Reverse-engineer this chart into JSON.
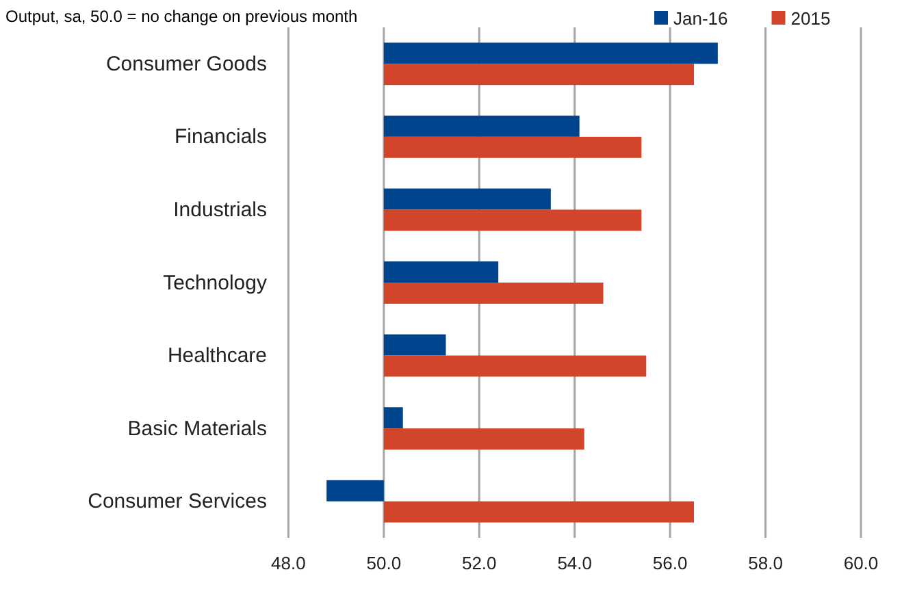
{
  "chart_data": {
    "type": "bar",
    "orientation": "horizontal",
    "title": "Output, sa, 50.0 = no change on previous month",
    "categories": [
      "Consumer Goods",
      "Financials",
      "Industrials",
      "Technology",
      "Healthcare",
      "Basic Materials",
      "Consumer Services"
    ],
    "series": [
      {
        "name": "Jan-16",
        "color": "#00448e",
        "values": [
          7.0,
          4.1,
          3.5,
          2.4,
          1.3,
          0.4,
          -1.2
        ],
        "base": [
          50,
          50,
          50,
          50,
          50,
          50,
          50
        ]
      },
      {
        "name": "2015",
        "color": "#d2452a",
        "values": [
          6.5,
          5.4,
          5.4,
          4.6,
          5.5,
          4.2,
          6.5
        ],
        "base": [
          50,
          50,
          50,
          50,
          50,
          50,
          50
        ]
      }
    ],
    "xlim": [
      48,
      60
    ],
    "xticks": [
      {
        "value": 48,
        "label": "48.0"
      },
      {
        "value": 50,
        "label": "50.0"
      },
      {
        "value": 52,
        "label": "52.0"
      },
      {
        "value": 54,
        "label": "54.0"
      },
      {
        "value": 56,
        "label": "56.0"
      },
      {
        "value": 58,
        "label": "58.0"
      },
      {
        "value": 60,
        "label": "60.0"
      }
    ],
    "grid": "x",
    "legend": "top right"
  }
}
